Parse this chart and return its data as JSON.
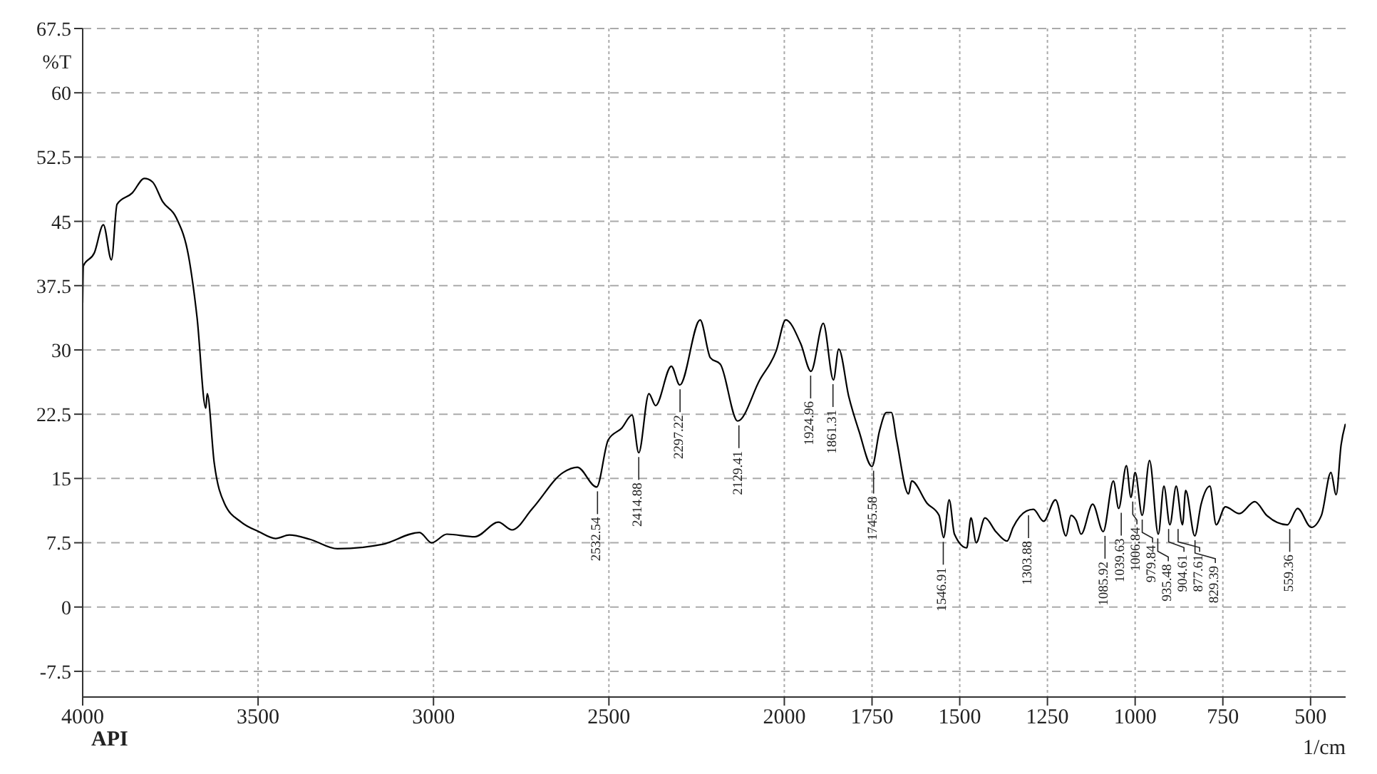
{
  "chart_data": {
    "type": "line",
    "xlabel": "1/cm",
    "ylabel": "%T",
    "xlim": [
      4000,
      400
    ],
    "xticks": [
      4000,
      3500,
      3000,
      2500,
      2000,
      1750,
      1500,
      1250,
      1000,
      750,
      500
    ],
    "ylim": [
      -10.5,
      67.5
    ],
    "yticks": [
      -7.5,
      0,
      7.5,
      15,
      22.5,
      30,
      37.5,
      45,
      52.5,
      60,
      67.5
    ],
    "grid": true,
    "series": [
      {
        "color": "#000000",
        "x": [
          4000,
          3998,
          3967,
          3941,
          3918,
          3902,
          3859,
          3824,
          3801,
          3772,
          3733,
          3698,
          3674,
          3649,
          3645,
          3625,
          3596,
          3548,
          3498,
          3450,
          3411,
          3352,
          3274,
          3147,
          3040,
          3005,
          2962,
          2882,
          2815,
          2776,
          2718,
          2630,
          2590,
          2535,
          2502,
          2463,
          2434,
          2415,
          2386,
          2367,
          2322,
          2298,
          2240,
          2211,
          2182,
          2133,
          2070,
          2023,
          1996,
          1953,
          1924,
          1889,
          1860,
          1845,
          1816,
          1787,
          1750,
          1729,
          1709,
          1695,
          1680,
          1646,
          1637,
          1593,
          1559,
          1546,
          1530,
          1515,
          1480,
          1468,
          1453,
          1428,
          1397,
          1365,
          1348,
          1310,
          1290,
          1261,
          1227,
          1197,
          1183,
          1168,
          1154,
          1121,
          1091,
          1062,
          1047,
          1025,
          1012,
          1000,
          980,
          959,
          934,
          918,
          901,
          883,
          865,
          856,
          830,
          812,
          787,
          769,
          743,
          703,
          659,
          625,
          566,
          537,
          498,
          469,
          442,
          427,
          413,
          401
        ],
        "values": [
          35.5,
          39.8,
          41.3,
          44.6,
          40.5,
          47.0,
          48.3,
          50.0,
          49.6,
          47.3,
          45.4,
          40.9,
          33.8,
          23.2,
          24.9,
          16.8,
          12.1,
          9.9,
          8.8,
          8.0,
          8.4,
          7.9,
          6.8,
          7.3,
          8.7,
          7.5,
          8.5,
          8.2,
          9.9,
          9.0,
          11.5,
          15.7,
          16.3,
          14.0,
          19.5,
          20.9,
          22.4,
          18.0,
          24.9,
          23.5,
          28.1,
          25.9,
          33.5,
          29.1,
          28.3,
          21.7,
          26.5,
          29.9,
          33.5,
          30.7,
          27.5,
          33.1,
          26.5,
          30.1,
          24.5,
          20.5,
          16.4,
          20.5,
          22.7,
          22.7,
          19.5,
          13.2,
          14.7,
          12.1,
          10.7,
          8.1,
          12.5,
          8.5,
          6.9,
          10.4,
          7.5,
          10.4,
          8.8,
          7.7,
          9.3,
          11.2,
          11.4,
          10.0,
          12.5,
          8.3,
          10.7,
          10.1,
          8.5,
          12.0,
          8.8,
          14.7,
          11.5,
          16.5,
          12.8,
          15.7,
          10.7,
          17.1,
          8.5,
          14.1,
          9.6,
          14.1,
          9.6,
          13.6,
          8.3,
          12.0,
          14.1,
          9.6,
          11.7,
          10.9,
          12.3,
          10.7,
          9.6,
          11.5,
          9.3,
          10.7,
          15.7,
          13.1,
          18.9,
          21.3
        ]
      }
    ],
    "annotations": [
      {
        "text": "2532.54",
        "x": 2532.54,
        "y": 14.0
      },
      {
        "text": "2414.88",
        "x": 2414.88,
        "y": 18.0
      },
      {
        "text": "2297.22",
        "x": 2297.22,
        "y": 25.9
      },
      {
        "text": "2129.41",
        "x": 2129.41,
        "y": 21.7
      },
      {
        "text": "1924.96",
        "x": 1924.96,
        "y": 27.5
      },
      {
        "text": "1861.31",
        "x": 1861.31,
        "y": 26.5
      },
      {
        "text": "1745.58",
        "x": 1745.58,
        "y": 16.4
      },
      {
        "text": "1546.91",
        "x": 1546.91,
        "y": 8.1
      },
      {
        "text": "1303.88",
        "x": 1303.88,
        "y": 11.2
      },
      {
        "text": "1085.92",
        "x": 1085.92,
        "y": 8.8
      },
      {
        "text": "1039.63",
        "x": 1039.63,
        "y": 11.5
      },
      {
        "text": "1006.84",
        "x": 1006.84,
        "y": 12.8
      },
      {
        "text": "979.84",
        "x": 979.84,
        "y": 10.7
      },
      {
        "text": "935.48",
        "x": 935.48,
        "y": 8.5
      },
      {
        "text": "904.61",
        "x": 904.61,
        "y": 9.6
      },
      {
        "text": "877.61",
        "x": 877.61,
        "y": 9.6
      },
      {
        "text": "829.39",
        "x": 829.39,
        "y": 8.3
      },
      {
        "text": "559.36",
        "x": 559.36,
        "y": 9.6
      },
      "API"
    ]
  }
}
